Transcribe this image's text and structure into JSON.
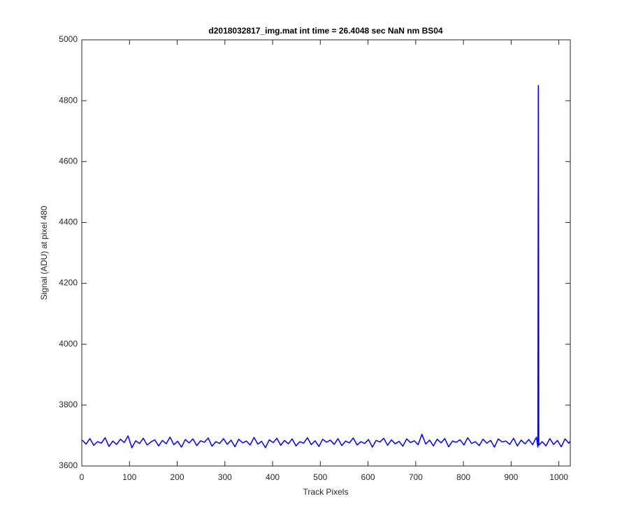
{
  "chart_data": {
    "type": "line",
    "title": "d2018032817_img.mat int time = 26.4048 sec  NaN nm BS04",
    "xlabel": "Track Pixels",
    "ylabel": "Signal (ADU) at pixel 480",
    "color": "#0000ff",
    "xlim": [
      0,
      1024
    ],
    "xticks": [
      0,
      100,
      200,
      300,
      400,
      500,
      600,
      700,
      800,
      900,
      1000
    ],
    "ylim": [
      3600,
      5000
    ],
    "yticks": [
      3600,
      3800,
      4000,
      4200,
      4400,
      4600,
      4800,
      5000
    ],
    "x": [
      1,
      9,
      17,
      25,
      33,
      41,
      49,
      57,
      65,
      73,
      81,
      89,
      97,
      105,
      113,
      121,
      129,
      137,
      145,
      153,
      161,
      169,
      177,
      185,
      193,
      201,
      209,
      217,
      225,
      233,
      241,
      249,
      257,
      265,
      273,
      281,
      289,
      297,
      305,
      313,
      321,
      329,
      337,
      345,
      353,
      361,
      369,
      377,
      385,
      393,
      401,
      409,
      417,
      425,
      433,
      441,
      449,
      457,
      465,
      473,
      481,
      489,
      497,
      505,
      513,
      521,
      529,
      537,
      545,
      553,
      561,
      569,
      577,
      585,
      593,
      601,
      609,
      617,
      625,
      633,
      641,
      649,
      657,
      665,
      673,
      681,
      689,
      697,
      705,
      713,
      721,
      729,
      737,
      745,
      753,
      761,
      769,
      777,
      785,
      793,
      801,
      809,
      817,
      825,
      833,
      841,
      849,
      857,
      865,
      873,
      881,
      889,
      897,
      905,
      913,
      921,
      929,
      937,
      945,
      953,
      956,
      957,
      958,
      965,
      973,
      981,
      989,
      997,
      1005,
      1013,
      1021,
      1024
    ],
    "values": [
      3685,
      3672,
      3690,
      3668,
      3680,
      3675,
      3693,
      3664,
      3682,
      3671,
      3688,
      3677,
      3699,
      3660,
      3683,
      3674,
      3691,
      3669,
      3679,
      3686,
      3666,
      3684,
      3673,
      3695,
      3670,
      3681,
      3662,
      3687,
      3676,
      3689,
      3667,
      3683,
      3678,
      3692,
      3665,
      3680,
      3674,
      3690,
      3671,
      3685,
      3663,
      3688,
      3676,
      3682,
      3669,
      3694,
      3672,
      3681,
      3660,
      3686,
      3677,
      3691,
      3668,
      3684,
      3673,
      3689,
      3666,
      3680,
      3675,
      3693,
      3670,
      3683,
      3664,
      3688,
      3678,
      3685,
      3671,
      3690,
      3667,
      3682,
      3676,
      3692,
      3669,
      3680,
      3674,
      3687,
      3662,
      3684,
      3679,
      3691,
      3668,
      3686,
      3673,
      3681,
      3665,
      3689,
      3677,
      3683,
      3670,
      3704,
      3672,
      3685,
      3666,
      3688,
      3676,
      3690,
      3663,
      3682,
      3678,
      3686,
      3669,
      3693,
      3674,
      3680,
      3667,
      3688,
      3675,
      3684,
      3662,
      3689,
      3679,
      3682,
      3671,
      3691,
      3666,
      3685,
      3673,
      3687,
      3670,
      3695,
      3662,
      4850,
      3668,
      3680,
      3666,
      3690,
      3671,
      3684,
      3663,
      3689,
      3675,
      3682
    ],
    "box": true
  }
}
